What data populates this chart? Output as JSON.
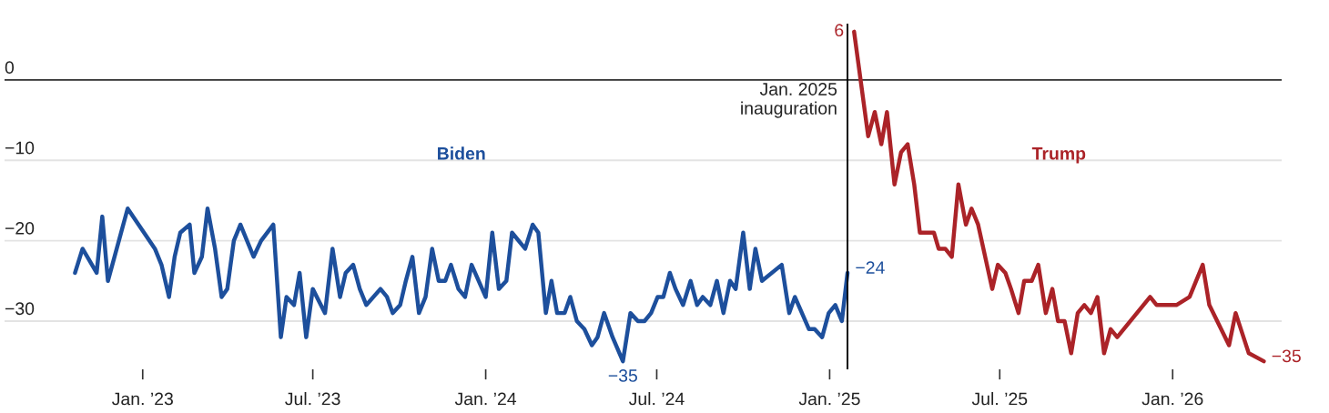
{
  "chart_data": {
    "type": "line",
    "xlim": [
      "2022-08-07",
      "2026-04-27"
    ],
    "ylim": [
      -36,
      7
    ],
    "xticks": [
      {
        "value": "2023-01-01",
        "label": "Jan. ’23"
      },
      {
        "value": "2023-07-01",
        "label": "Jul. ’23"
      },
      {
        "value": "2024-01-01",
        "label": "Jan. ’24"
      },
      {
        "value": "2024-07-01",
        "label": "Jul. ’24"
      },
      {
        "value": "2025-01-01",
        "label": "Jan. ’25"
      },
      {
        "value": "2025-07-01",
        "label": "Jul. ’25"
      },
      {
        "value": "2026-01-01",
        "label": "Jan. ’26"
      }
    ],
    "yticks": [
      0,
      -10,
      -20,
      -30
    ],
    "grid": "y",
    "legend": false,
    "marker": "none",
    "line_style": "solid",
    "ref_lines": [
      {
        "axis": "y",
        "value": 0,
        "color": "#333333"
      },
      {
        "axis": "x",
        "value": "2025-01-20",
        "label": "Jan. 2025\ninauguration",
        "color": "#000000"
      }
    ],
    "series": [
      {
        "name": "Biden",
        "color": "#1d4f9c",
        "x": [
          "2022-10-21",
          "2022-10-29",
          "2022-11-13",
          "2022-11-19",
          "2022-11-25",
          "2022-12-16",
          "2023-01-14",
          "2023-01-21",
          "2023-01-29",
          "2023-02-04",
          "2023-02-10",
          "2023-02-20",
          "2023-02-25",
          "2023-03-05",
          "2023-03-11",
          "2023-03-19",
          "2023-03-26",
          "2023-04-01",
          "2023-04-08",
          "2023-04-15",
          "2023-04-29",
          "2023-05-07",
          "2023-05-20",
          "2023-05-28",
          "2023-06-03",
          "2023-06-11",
          "2023-06-17",
          "2023-06-24",
          "2023-07-01",
          "2023-07-14",
          "2023-07-22",
          "2023-07-30",
          "2023-08-05",
          "2023-08-13",
          "2023-08-20",
          "2023-08-27",
          "2023-09-11",
          "2023-09-18",
          "2023-09-24",
          "2023-10-02",
          "2023-10-08",
          "2023-10-15",
          "2023-10-22",
          "2023-10-29",
          "2023-11-05",
          "2023-11-12",
          "2023-11-19",
          "2023-11-25",
          "2023-12-03",
          "2023-12-10",
          "2023-12-17",
          "2024-01-01",
          "2024-01-08",
          "2024-01-15",
          "2024-01-23",
          "2024-01-29",
          "2024-02-12",
          "2024-02-20",
          "2024-02-26",
          "2024-03-05",
          "2024-03-11",
          "2024-03-17",
          "2024-03-25",
          "2024-03-31",
          "2024-04-07",
          "2024-04-15",
          "2024-04-23",
          "2024-04-29",
          "2024-05-06",
          "2024-05-15",
          "2024-05-26",
          "2024-06-03",
          "2024-06-11",
          "2024-06-18",
          "2024-06-25",
          "2024-07-02",
          "2024-07-08",
          "2024-07-15",
          "2024-07-21",
          "2024-07-29",
          "2024-08-06",
          "2024-08-13",
          "2024-08-19",
          "2024-08-27",
          "2024-09-03",
          "2024-09-10",
          "2024-09-17",
          "2024-09-23",
          "2024-10-01",
          "2024-10-08",
          "2024-10-14",
          "2024-10-21",
          "2024-11-11",
          "2024-11-19",
          "2024-11-25",
          "2024-12-10",
          "2024-12-16",
          "2024-12-24",
          "2024-12-31",
          "2025-01-07",
          "2025-01-14",
          "2025-01-20"
        ],
        "values": [
          -24,
          -21,
          -24,
          -17,
          -25,
          -16,
          -21,
          -23,
          -27,
          -22,
          -19,
          -18,
          -24,
          -22,
          -16,
          -21,
          -27,
          -26,
          -20,
          -18,
          -22,
          -20,
          -18,
          -32,
          -27,
          -28,
          -24,
          -32,
          -26,
          -29,
          -21,
          -27,
          -24,
          -23,
          -26,
          -28,
          -26,
          -27,
          -29,
          -28,
          -25,
          -22,
          -29,
          -27,
          -21,
          -25,
          -25,
          -23,
          -26,
          -27,
          -23,
          -27,
          -19,
          -26,
          -25,
          -19,
          -21,
          -18,
          -19,
          -29,
          -25,
          -29,
          -29,
          -27,
          -30,
          -31,
          -33,
          -32,
          -29,
          -32,
          -35,
          -29,
          -30,
          -30,
          -29,
          -27,
          -27,
          -24,
          -26,
          -28,
          -25,
          -28,
          -27,
          -28,
          -25,
          -29,
          -25,
          -26,
          -19,
          -26,
          -21,
          -25,
          -23,
          -29,
          -27,
          -31,
          -31,
          -32,
          -29,
          -28,
          -30,
          -24
        ],
        "value_labels": [
          null,
          null,
          null,
          null,
          null,
          null,
          null,
          null,
          null,
          null,
          null,
          null,
          null,
          null,
          null,
          null,
          null,
          null,
          null,
          null,
          null,
          null,
          null,
          null,
          null,
          null,
          null,
          null,
          null,
          null,
          null,
          null,
          null,
          null,
          null,
          null,
          null,
          null,
          null,
          null,
          null,
          null,
          null,
          null,
          null,
          null,
          null,
          null,
          null,
          null,
          null,
          null,
          null,
          null,
          null,
          null,
          null,
          null,
          null,
          null,
          null,
          null,
          null,
          null,
          null,
          null,
          null,
          null,
          null,
          null,
          "−35",
          null,
          null,
          null,
          null,
          null,
          null,
          null,
          null,
          null,
          null,
          null,
          null,
          null,
          null,
          null,
          null,
          null,
          null,
          null,
          null,
          null,
          null,
          null,
          null,
          null,
          null,
          null,
          null,
          null,
          null,
          "−24"
        ]
      },
      {
        "name": "Trump",
        "color": "#ab2328",
        "x": [
          "2025-01-27",
          "2025-02-11",
          "2025-02-18",
          "2025-02-25",
          "2025-03-03",
          "2025-03-11",
          "2025-03-18",
          "2025-03-25",
          "2025-04-01",
          "2025-04-07",
          "2025-04-22",
          "2025-04-27",
          "2025-05-04",
          "2025-05-11",
          "2025-05-18",
          "2025-05-26",
          "2025-06-01",
          "2025-06-08",
          "2025-06-23",
          "2025-06-29",
          "2025-07-07",
          "2025-07-13",
          "2025-07-21",
          "2025-07-27",
          "2025-08-04",
          "2025-08-11",
          "2025-08-19",
          "2025-08-26",
          "2025-09-01",
          "2025-09-08",
          "2025-09-15",
          "2025-09-22",
          "2025-09-29",
          "2025-10-06",
          "2025-10-13",
          "2025-10-20",
          "2025-10-27",
          "2025-11-03",
          "2025-12-08",
          "2025-12-15",
          "2026-01-05",
          "2026-01-19",
          "2026-02-02",
          "2026-02-09",
          "2026-03-02",
          "2026-03-09",
          "2026-03-23",
          "2026-04-08"
        ],
        "values": [
          6,
          -7,
          -4,
          -8,
          -4,
          -13,
          -9,
          -8,
          -13,
          -19,
          -19,
          -21,
          -21,
          -22,
          -13,
          -18,
          -16,
          -18,
          -26,
          -23,
          -24,
          -26,
          -29,
          -25,
          -25,
          -23,
          -29,
          -26,
          -30,
          -30,
          -34,
          -29,
          -28,
          -29,
          -27,
          -34,
          -31,
          -32,
          -27,
          -28,
          -28,
          -27,
          -23,
          -28,
          -33,
          -29,
          -34,
          -35
        ],
        "value_labels": [
          "6",
          null,
          null,
          null,
          null,
          null,
          null,
          null,
          null,
          null,
          null,
          null,
          null,
          null,
          null,
          null,
          null,
          null,
          null,
          null,
          null,
          null,
          null,
          null,
          null,
          null,
          null,
          null,
          null,
          null,
          null,
          null,
          null,
          null,
          null,
          null,
          null,
          null,
          null,
          null,
          null,
          null,
          null,
          null,
          null,
          null,
          null,
          "−35"
        ]
      }
    ]
  }
}
